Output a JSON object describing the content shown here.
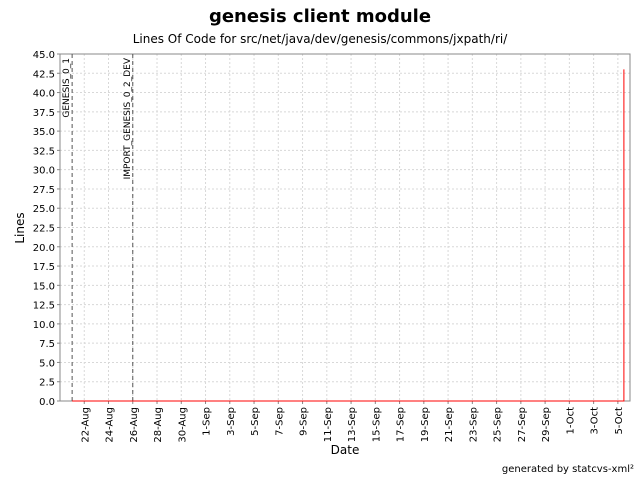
{
  "page": {
    "title": "genesis client module",
    "subtitle": "Lines Of Code for src/net/java/dev/genesis/commons/jxpath/ri/",
    "footer": "generated by statcvs-xml²"
  },
  "chart_data": {
    "type": "line",
    "title": "genesis client module",
    "subtitle": "Lines Of Code for src/net/java/dev/genesis/commons/jxpath/ri/",
    "xlabel": "Date",
    "ylabel": "Lines",
    "xlim": [
      "2004-08-20",
      "2004-10-06"
    ],
    "ylim": [
      0,
      45
    ],
    "y_ticks": [
      0,
      2.5,
      5,
      7.5,
      10,
      12.5,
      15,
      17.5,
      20,
      22.5,
      25,
      27.5,
      30,
      32.5,
      35,
      37.5,
      40,
      42.5,
      45
    ],
    "x_tick_dates": [
      "2004-08-22",
      "2004-08-24",
      "2004-08-26",
      "2004-08-28",
      "2004-08-30",
      "2004-09-01",
      "2004-09-03",
      "2004-09-05",
      "2004-09-07",
      "2004-09-09",
      "2004-09-11",
      "2004-09-13",
      "2004-09-15",
      "2004-09-17",
      "2004-09-19",
      "2004-09-21",
      "2004-09-23",
      "2004-09-25",
      "2004-09-27",
      "2004-09-29",
      "2004-10-01",
      "2004-10-03",
      "2004-10-05"
    ],
    "x_tick_labels": [
      "22-Aug",
      "24-Aug",
      "26-Aug",
      "28-Aug",
      "30-Aug",
      "1-Sep",
      "3-Sep",
      "5-Sep",
      "7-Sep",
      "9-Sep",
      "11-Sep",
      "13-Sep",
      "15-Sep",
      "17-Sep",
      "19-Sep",
      "21-Sep",
      "23-Sep",
      "25-Sep",
      "27-Sep",
      "29-Sep",
      "1-Oct",
      "3-Oct",
      "5-Oct"
    ],
    "grid": true,
    "series": [
      {
        "color": "#ff0000",
        "points": [
          {
            "x": "2004-08-21",
            "y": 0
          },
          {
            "x": "2004-10-05 12:00",
            "y": 0
          },
          {
            "x": "2004-10-05 12:00",
            "y": 43
          }
        ]
      }
    ],
    "markers": [
      {
        "label": "GENESIS_0_1",
        "x": "2004-08-21"
      },
      {
        "label": "IMPORT_GENESIS_0_2_DEV",
        "x": "2004-08-26"
      }
    ]
  }
}
